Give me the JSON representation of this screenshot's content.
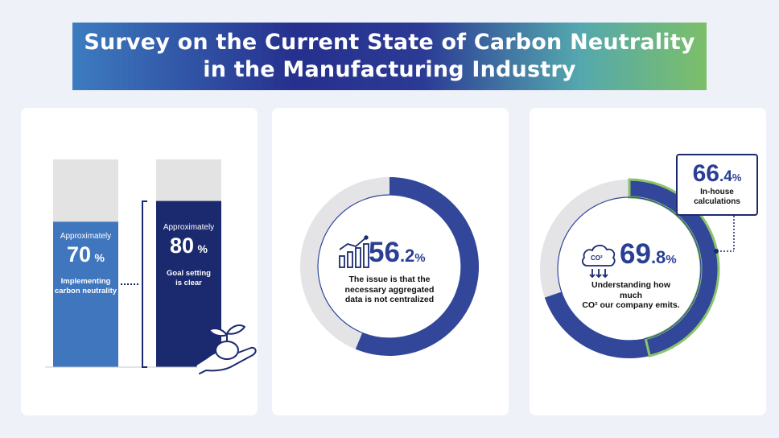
{
  "title": {
    "line1": "Survey on the Current State of Carbon Neutrality",
    "line2": "in the Manufacturing Industry"
  },
  "colors": {
    "navy": "#1b2a6e",
    "blue": "#3f76be",
    "ring_blue": "#32479a",
    "ring_grey": "#e4e4e6",
    "green_outline": "#8cc46a",
    "bar_grey": "#e3e3e3"
  },
  "chart_data": [
    {
      "type": "bar",
      "categories": [
        "Implementing carbon neutrality",
        "Goal setting is clear"
      ],
      "values": [
        70,
        80
      ],
      "ylim": [
        0,
        100
      ],
      "labels": [
        {
          "prefix": "Approximately",
          "number": "70",
          "unit": "%",
          "line1": "Implementing",
          "line2": "carbon neutrality"
        },
        {
          "prefix": "Approximately",
          "number": "80",
          "unit": "%",
          "line1": "Goal setting",
          "line2": "is clear"
        }
      ]
    },
    {
      "type": "pie",
      "values": [
        56.2,
        43.8
      ],
      "label": {
        "whole": "56",
        "decimal": ".2",
        "unit": "%",
        "line1": "The issue is that the",
        "line2": "necessary aggregated",
        "line3": "data is not centralized"
      }
    },
    {
      "type": "pie",
      "values": [
        69.8,
        30.2
      ],
      "sub_value": 66.4,
      "label": {
        "whole": "69",
        "decimal": ".8",
        "unit": "%",
        "line1": "Understanding how much",
        "line2": "CO² our company emits."
      },
      "callout": {
        "whole": "66",
        "decimal": ".4",
        "unit": "%",
        "line1": "In-house",
        "line2": "calculations"
      },
      "icon_text": "CO²"
    }
  ]
}
